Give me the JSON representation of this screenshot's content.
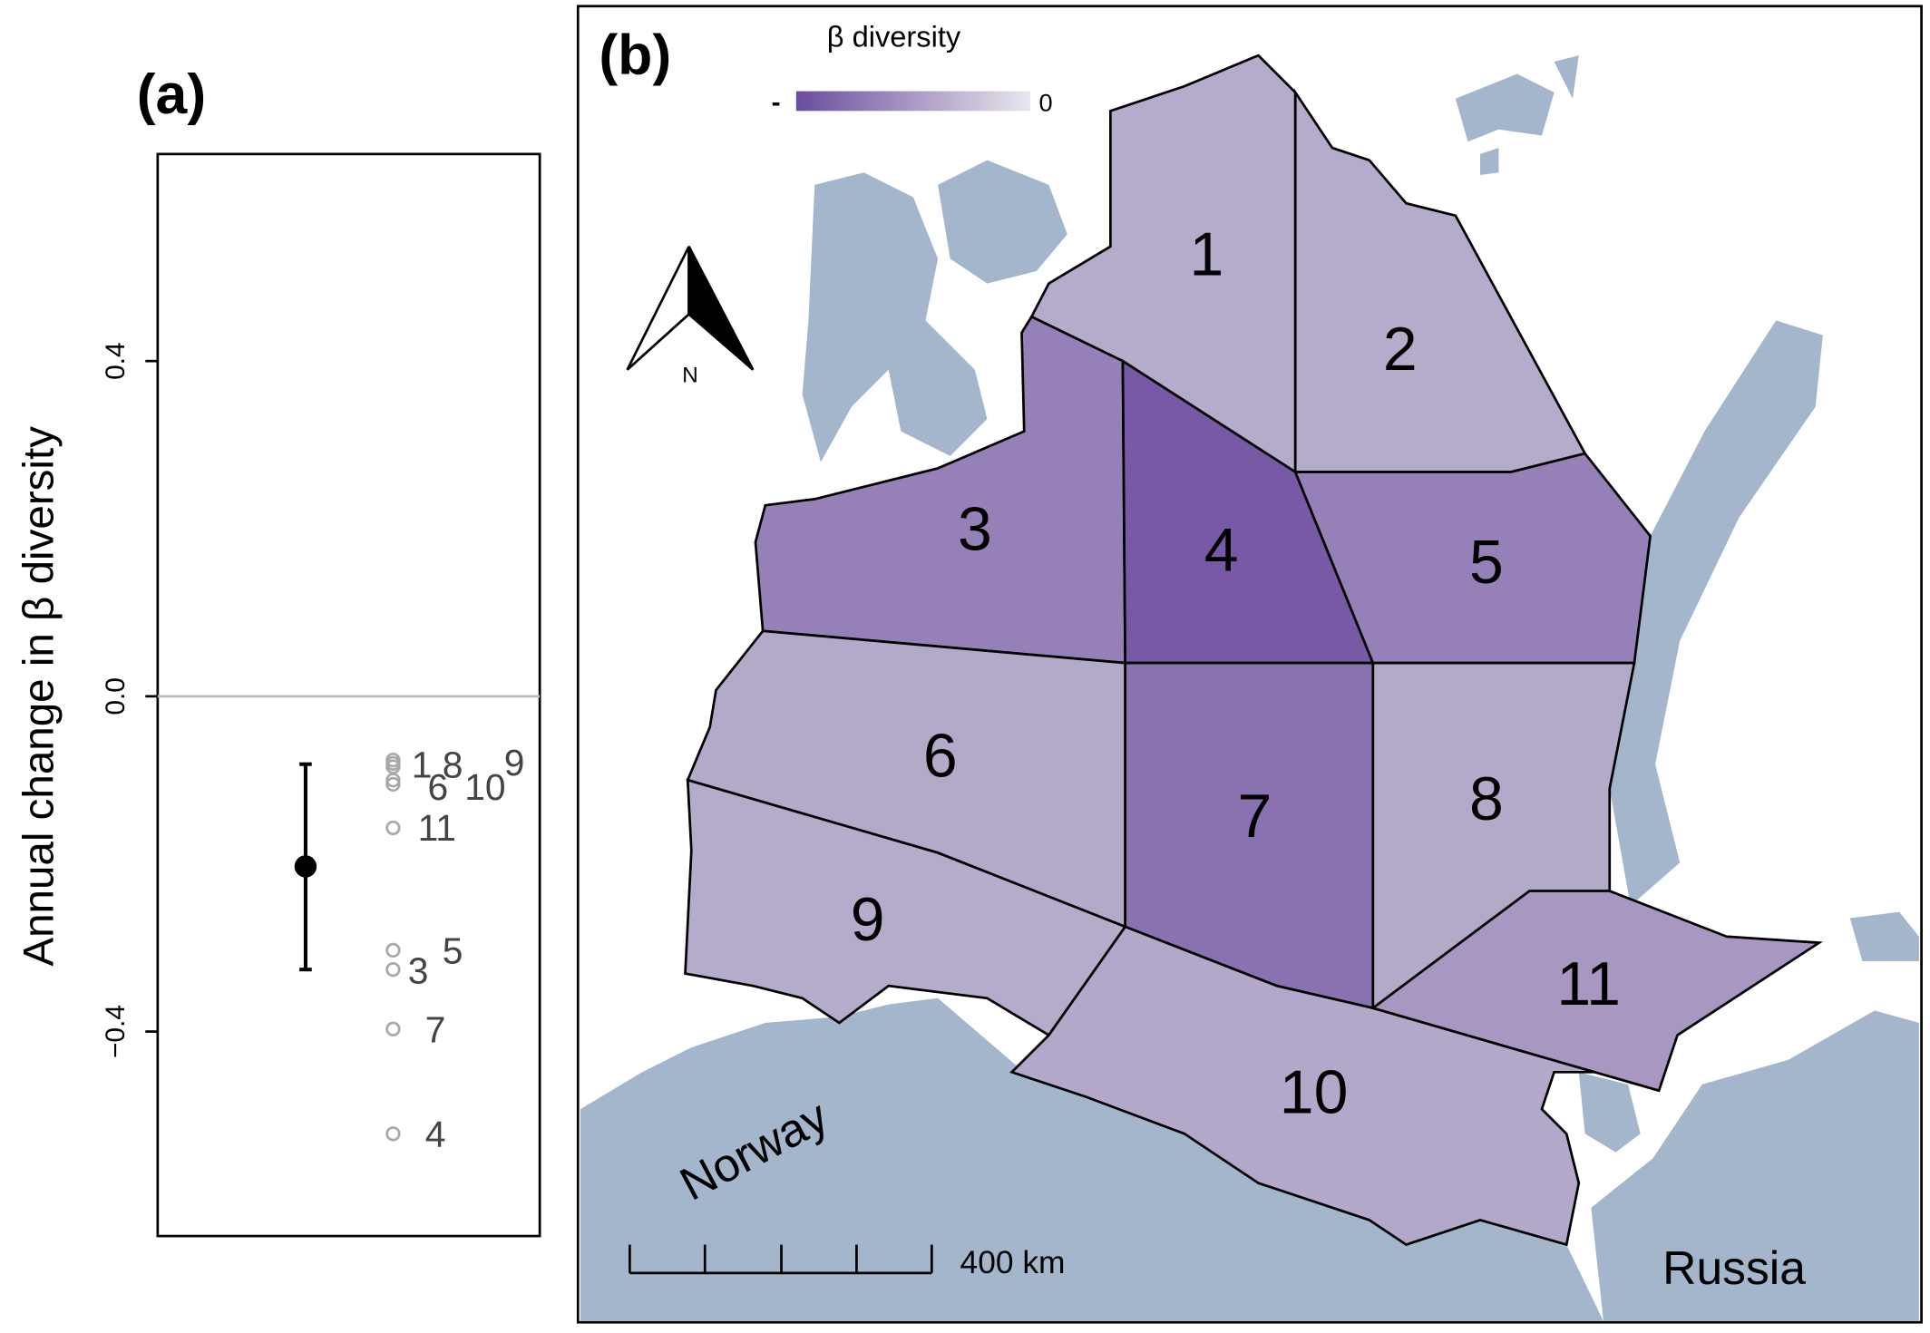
{
  "chart_data": {
    "type": "scatter",
    "title": "(a)",
    "ylabel": "Annual change in  β diversity",
    "ylim": [
      -0.644,
      0.647
    ],
    "yticks": [
      0.4,
      {
        "value": 0,
        "label": "0.0"
      },
      {
        "value": -0.4,
        "label": "−0.4"
      }
    ],
    "zero_line": true,
    "mean": -0.203,
    "error_bar": [
      -0.081,
      -0.326
    ],
    "mean_color": "#000000",
    "point_color": "#a8a8a8",
    "label_color": "#444444",
    "categories": [
      "1",
      "8",
      "9",
      "6",
      "10",
      "11",
      "5",
      "3",
      "7",
      "4"
    ],
    "values": [
      -0.076,
      -0.084,
      -0.08,
      -0.1,
      -0.105,
      -0.157,
      -0.303,
      -0.326,
      -0.397,
      -0.522
    ]
  },
  "map": {
    "title": "(b)",
    "legend": {
      "title": "β  diversity",
      "low": "-",
      "high": "0",
      "low_color": "#6a4c9c",
      "high_color": "#e8e6ec"
    },
    "sea_color": "#a3b6cc",
    "regions": [
      {
        "label": "1",
        "color": "#b5abca"
      },
      {
        "label": "2",
        "color": "#b5abca"
      },
      {
        "label": "3",
        "color": "#9581b8"
      },
      {
        "label": "4",
        "color": "#7759a5"
      },
      {
        "label": "5",
        "color": "#9581b8"
      },
      {
        "label": "6",
        "color": "#b3a9c8"
      },
      {
        "label": "7",
        "color": "#8a71b0"
      },
      {
        "label": "8",
        "color": "#b3a9c8"
      },
      {
        "label": "9",
        "color": "#b5abca"
      },
      {
        "label": "10",
        "color": "#b3a8c9"
      },
      {
        "label": "11",
        "color": "#a898c1"
      }
    ],
    "country_labels": [
      "Norway",
      "Russia"
    ],
    "scale_bar": "400 km",
    "north": "N"
  }
}
